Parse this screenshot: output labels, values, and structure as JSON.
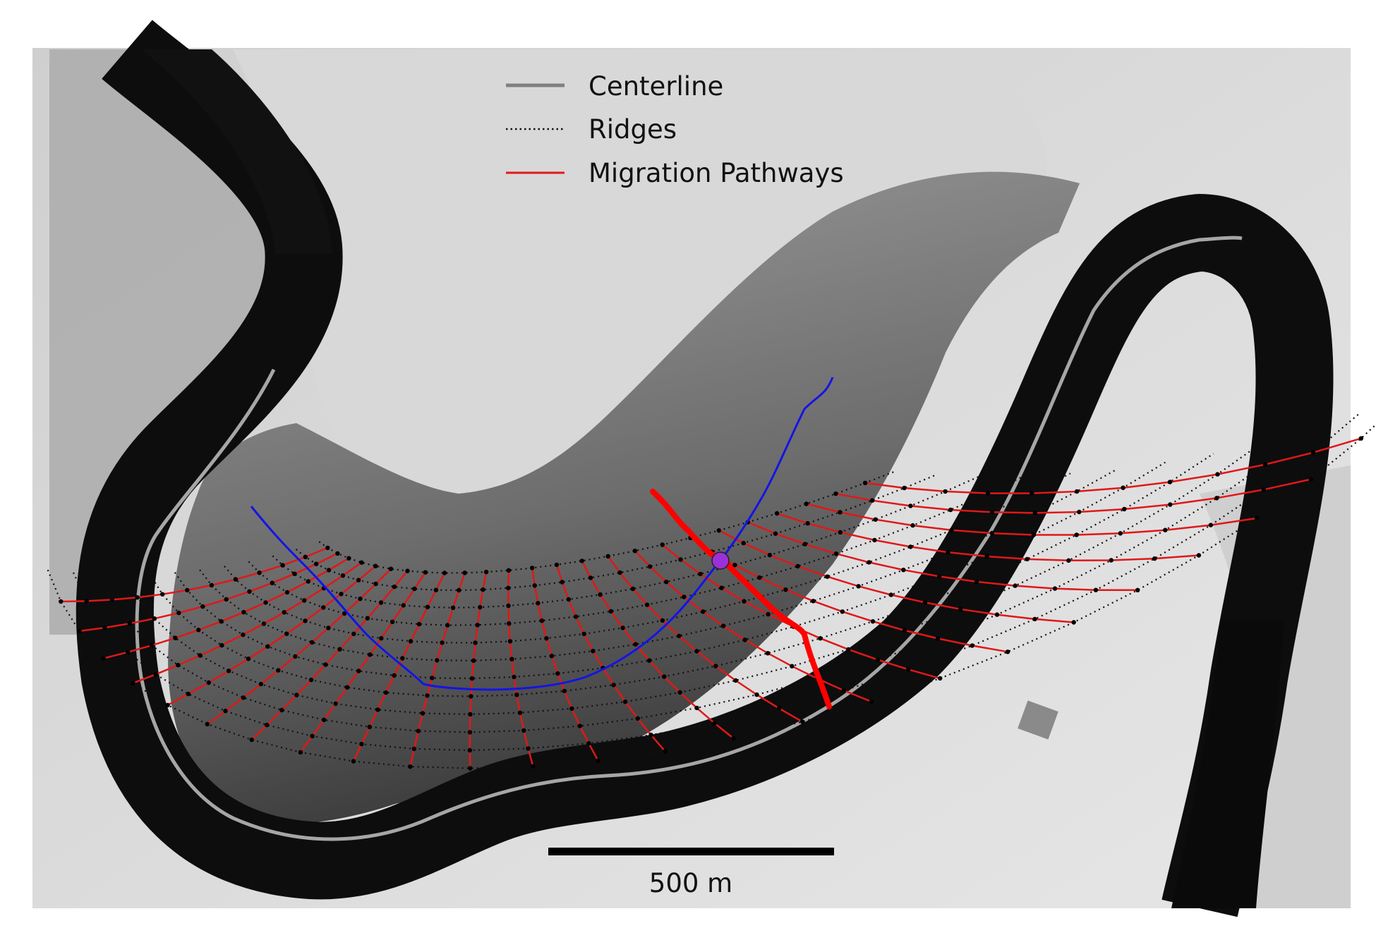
{
  "legend": {
    "centerline_label": "Centerline",
    "ridges_label": "Ridges",
    "pathways_label": "Migration Pathways"
  },
  "scale_bar": {
    "label": "500 m"
  },
  "colors": {
    "centerline": "#a6a6a6",
    "ridges": "#111111",
    "pathways": "#e01818",
    "highlight_pathway": "#ff0000",
    "channel_path": "#1414e6",
    "marker": "#9b30d9",
    "river": "#0d0d0d"
  }
}
